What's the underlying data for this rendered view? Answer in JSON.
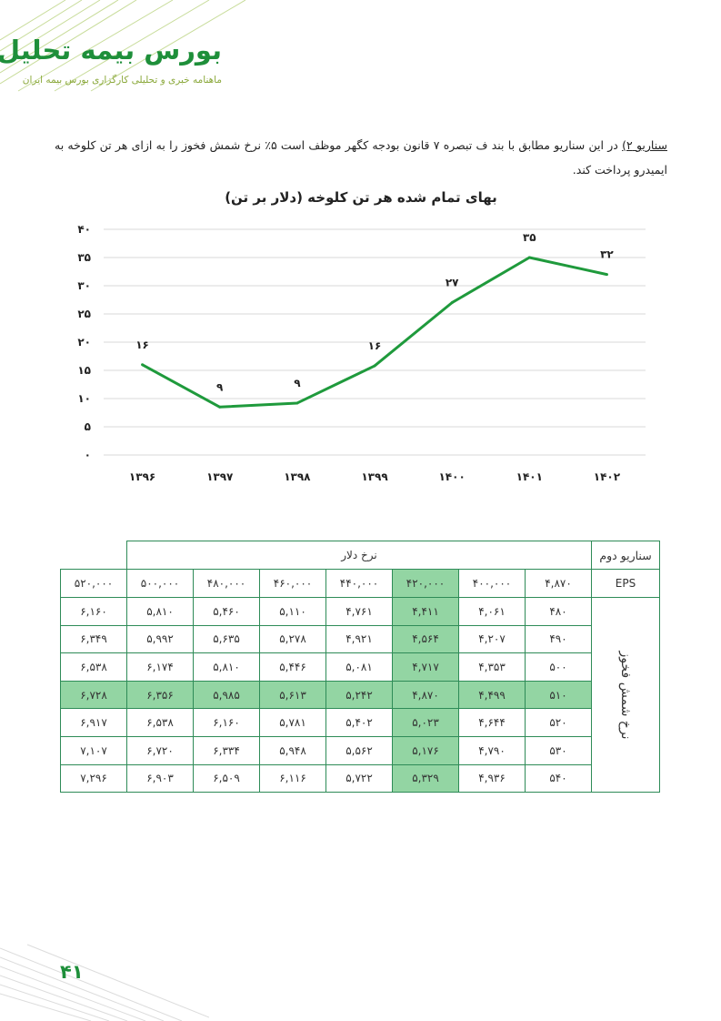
{
  "header": {
    "brand_title": "بورس بیمه تحلیل",
    "brand_subtitle": "ماهنامه خبری و تحلیلی کارگزاری بورس بیمه ایران"
  },
  "body": {
    "lead": "سناریو ۲)",
    "text": " در این سناریو مطابق با بند ف تبصره ۷ قانون بودجه کگهر موظف است ۵٪ نرخ شمش فخوز را به ازای هر تن کلوخه به ایمیدرو پرداخت کند."
  },
  "chart_data": {
    "type": "line",
    "title": "بهای تمام شده هر تن کلوخه (دلار بر تن)",
    "categories": [
      "۱۳۹۶",
      "۱۳۹۷",
      "۱۳۹۸",
      "۱۳۹۹",
      "۱۴۰۰",
      "۱۴۰۱",
      "۱۴۰۲"
    ],
    "values": [
      16,
      8.5,
      9.2,
      15.8,
      27,
      35,
      32
    ],
    "data_labels": [
      "۱۶",
      "۹",
      "۹",
      "۱۶",
      "۲۷",
      "۳۵",
      "۳۲"
    ],
    "ylim": [
      0,
      40
    ],
    "yticks": [
      "۰",
      "۵",
      "۱۰",
      "۱۵",
      "۲۰",
      "۲۵",
      "۳۰",
      "۳۵",
      "۴۰"
    ],
    "grid": true,
    "line_color": "#1f9a3c"
  },
  "table": {
    "corner": "سناریو دوم",
    "group_header": "نرخ دلار",
    "row_axis_label": "نرخ شمش فخوز",
    "eps_label": "EPS",
    "eps_value": "۴,۸۷۰",
    "columns": [
      "۴۰۰,۰۰۰",
      "۴۲۰,۰۰۰",
      "۴۴۰,۰۰۰",
      "۴۶۰,۰۰۰",
      "۴۸۰,۰۰۰",
      "۵۰۰,۰۰۰",
      "۵۲۰,۰۰۰"
    ],
    "rows": [
      {
        "label": "۴۸۰",
        "cells": [
          "۴,۰۶۱",
          "۴,۴۱۱",
          "۴,۷۶۱",
          "۵,۱۱۰",
          "۵,۴۶۰",
          "۵,۸۱۰",
          "۶,۱۶۰"
        ]
      },
      {
        "label": "۴۹۰",
        "cells": [
          "۴,۲۰۷",
          "۴,۵۶۴",
          "۴,۹۲۱",
          "۵,۲۷۸",
          "۵,۶۳۵",
          "۵,۹۹۲",
          "۶,۳۴۹"
        ]
      },
      {
        "label": "۵۰۰",
        "cells": [
          "۴,۳۵۳",
          "۴,۷۱۷",
          "۵,۰۸۱",
          "۵,۴۴۶",
          "۵,۸۱۰",
          "۶,۱۷۴",
          "۶,۵۳۸"
        ]
      },
      {
        "label": "۵۱۰",
        "cells": [
          "۴,۴۹۹",
          "۴,۸۷۰",
          "۵,۲۴۲",
          "۵,۶۱۳",
          "۵,۹۸۵",
          "۶,۳۵۶",
          "۶,۷۲۸"
        ]
      },
      {
        "label": "۵۲۰",
        "cells": [
          "۴,۶۴۴",
          "۵,۰۲۳",
          "۵,۴۰۲",
          "۵,۷۸۱",
          "۶,۱۶۰",
          "۶,۵۳۸",
          "۶,۹۱۷"
        ]
      },
      {
        "label": "۵۳۰",
        "cells": [
          "۴,۷۹۰",
          "۵,۱۷۶",
          "۵,۵۶۲",
          "۵,۹۴۸",
          "۶,۳۳۴",
          "۶,۷۲۰",
          "۷,۱۰۷"
        ]
      },
      {
        "label": "۵۴۰",
        "cells": [
          "۴,۹۳۶",
          "۵,۳۲۹",
          "۵,۷۲۲",
          "۶,۱۱۶",
          "۶,۵۰۹",
          "۶,۹۰۳",
          "۷,۲۹۶"
        ]
      }
    ],
    "highlight_color": "#93d5a3"
  },
  "footer": {
    "page_number": "۴۱"
  }
}
